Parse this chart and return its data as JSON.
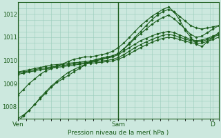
{
  "title": "",
  "xlabel": "Pression niveau de la mer( hPa )",
  "ylabel": "",
  "bg_color": "#cce8de",
  "grid_color": "#99ccbb",
  "line_color": "#1a5c1a",
  "ylim": [
    1007.5,
    1012.5
  ],
  "ytick_labels": [
    "1008",
    "1009",
    "1010",
    "1011",
    "1012"
  ],
  "ytick_values": [
    1008,
    1009,
    1010,
    1011,
    1012
  ],
  "xtick_labels": [
    "Ven",
    "Sam",
    "D"
  ],
  "xtick_positions": [
    0.0,
    0.5,
    0.97
  ],
  "xlim": [
    0.0,
    1.0
  ],
  "n_points": 37,
  "series": [
    [
      1007.5,
      1007.65,
      1007.85,
      1008.1,
      1008.35,
      1008.6,
      1008.85,
      1009.05,
      1009.2,
      1009.35,
      1009.5,
      1009.65,
      1009.8,
      1009.95,
      1010.05,
      1010.1,
      1010.15,
      1010.2,
      1010.3,
      1010.5,
      1010.75,
      1011.0,
      1011.25,
      1011.5,
      1011.75,
      1011.95,
      1012.1,
      1012.2,
      1012.1,
      1011.9,
      1011.7,
      1011.5,
      1011.4,
      1011.35,
      1011.4,
      1011.45,
      1011.5
    ],
    [
      1008.5,
      1008.75,
      1009.0,
      1009.2,
      1009.4,
      1009.55,
      1009.65,
      1009.75,
      1009.85,
      1009.95,
      1010.05,
      1010.1,
      1010.15,
      1010.15,
      1010.2,
      1010.25,
      1010.3,
      1010.4,
      1010.55,
      1010.75,
      1011.0,
      1011.25,
      1011.5,
      1011.7,
      1011.9,
      1012.05,
      1012.2,
      1012.3,
      1012.1,
      1011.75,
      1011.3,
      1011.0,
      1010.7,
      1010.6,
      1010.8,
      1011.0,
      1011.2
    ],
    [
      1009.5,
      1009.55,
      1009.6,
      1009.65,
      1009.7,
      1009.75,
      1009.8,
      1009.82,
      1009.85,
      1009.88,
      1009.9,
      1009.92,
      1009.95,
      1009.98,
      1010.0,
      1010.05,
      1010.1,
      1010.15,
      1010.25,
      1010.4,
      1010.55,
      1010.7,
      1010.85,
      1010.95,
      1011.05,
      1011.15,
      1011.2,
      1011.25,
      1011.2,
      1011.1,
      1011.0,
      1010.9,
      1010.85,
      1010.88,
      1010.95,
      1011.05,
      1011.15
    ],
    [
      1009.45,
      1009.5,
      1009.55,
      1009.6,
      1009.65,
      1009.68,
      1009.72,
      1009.75,
      1009.78,
      1009.82,
      1009.85,
      1009.88,
      1009.9,
      1009.93,
      1009.95,
      1009.98,
      1010.0,
      1010.05,
      1010.12,
      1010.25,
      1010.4,
      1010.55,
      1010.68,
      1010.8,
      1010.9,
      1011.0,
      1011.08,
      1011.12,
      1011.08,
      1011.0,
      1010.92,
      1010.85,
      1010.8,
      1010.82,
      1010.9,
      1011.0,
      1011.1
    ],
    [
      1009.4,
      1009.45,
      1009.5,
      1009.55,
      1009.6,
      1009.63,
      1009.67,
      1009.7,
      1009.73,
      1009.77,
      1009.8,
      1009.83,
      1009.86,
      1009.88,
      1009.9,
      1009.92,
      1009.95,
      1009.98,
      1010.05,
      1010.15,
      1010.28,
      1010.42,
      1010.55,
      1010.67,
      1010.78,
      1010.88,
      1010.95,
      1011.0,
      1010.97,
      1010.9,
      1010.83,
      1010.77,
      1010.72,
      1010.75,
      1010.82,
      1010.9,
      1011.0
    ],
    [
      1007.4,
      1007.6,
      1007.85,
      1008.1,
      1008.4,
      1008.65,
      1008.9,
      1009.1,
      1009.3,
      1009.48,
      1009.6,
      1009.72,
      1009.82,
      1009.9,
      1009.98,
      1010.05,
      1010.12,
      1010.2,
      1010.3,
      1010.5,
      1010.7,
      1010.95,
      1011.15,
      1011.35,
      1011.55,
      1011.72,
      1011.85,
      1011.95,
      1011.8,
      1011.58,
      1011.35,
      1011.12,
      1011.0,
      1011.05,
      1011.2,
      1011.35,
      1011.5
    ]
  ]
}
